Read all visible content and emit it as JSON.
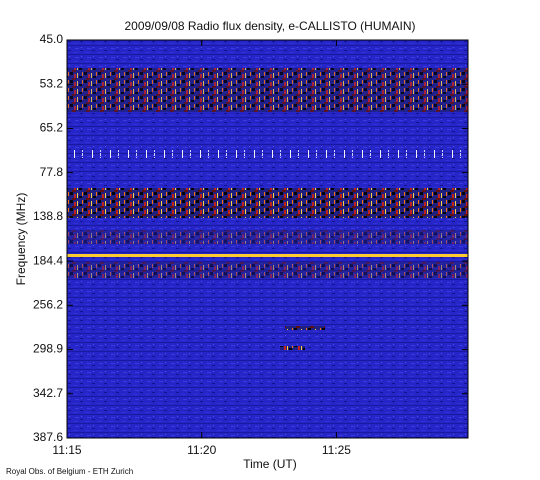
{
  "chart_data": {
    "type": "spectrogram",
    "title": "2009/09/08  Radio flux density, e-CALLISTO (HUMAIN)",
    "x_label": "Time (UT)",
    "y_label": "Frequency (MHz)",
    "footer": "Royal Obs. of Belgium - ETH Zurich",
    "xlim": [
      "11:15",
      "11:29:53"
    ],
    "xticks": [
      "11:15",
      "11:20",
      "11:25"
    ],
    "yticks": [
      45.0,
      53.2,
      65.2,
      77.8,
      138.8,
      184.4,
      256.2,
      298.9,
      342.7,
      387.6
    ]
  }
}
